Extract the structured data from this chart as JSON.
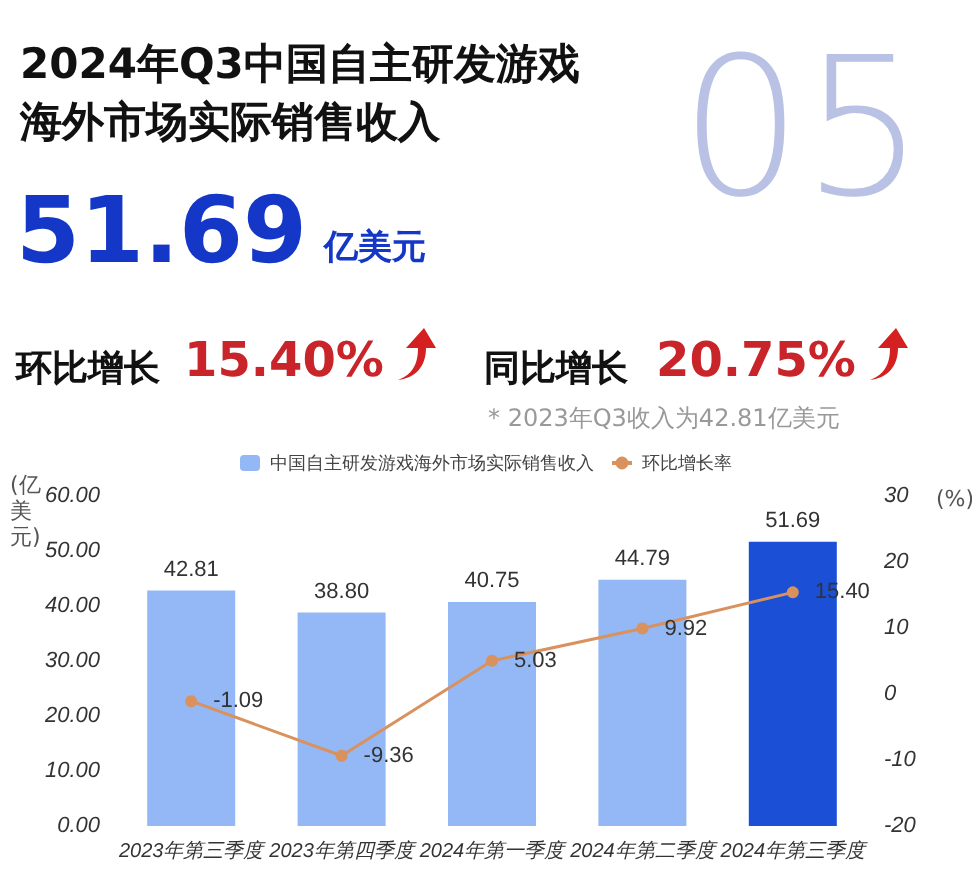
{
  "chart_data": {
    "type": "bar",
    "title": "2024年Q3中国自主研发游戏海外市场实际销售收入",
    "annotations": [
      "05",
      "51.69",
      "亿美元",
      "环比增长",
      "15.40%",
      "同比增长",
      "20.75%",
      "* 2023年Q3收入为42.81亿美元"
    ],
    "categories": [
      "2023年第三季度",
      "2023年第四季度",
      "2024年第一季度",
      "2024年第二季度",
      "2024年第三季度"
    ],
    "series": [
      {
        "name": "中国自主研发游戏海外市场实际销售收入",
        "colors": [
          "#93b8f5",
          "#93b8f5",
          "#93b8f5",
          "#93b8f5",
          "#1a4fd6"
        ],
        "values": [
          42.81,
          38.8,
          40.75,
          44.79,
          51.69
        ],
        "value_labels": [
          "42.81",
          "38.80",
          "40.75",
          "44.79",
          "51.69"
        ]
      },
      {
        "name": "环比增长率",
        "type": "line",
        "axis": "y2",
        "color": "#d9915e",
        "values": [
          -1.09,
          -9.36,
          5.03,
          9.92,
          15.4
        ],
        "value_labels": [
          "-1.09",
          "-9.36",
          "5.03",
          "9.92",
          "15.40"
        ]
      }
    ],
    "ylabel": "(亿美元)",
    "y2label": "(%)",
    "ylim": [
      0,
      60
    ],
    "yticks": [
      {
        "value": 0,
        "label": "0.00"
      },
      {
        "value": 10,
        "label": "10.00"
      },
      {
        "value": 20,
        "label": "20.00"
      },
      {
        "value": 30,
        "label": "30.00"
      },
      {
        "value": 40,
        "label": "40.00"
      },
      {
        "value": 50,
        "label": "50.00"
      },
      {
        "value": 60,
        "label": "60.00"
      }
    ],
    "y2lim": [
      -20,
      30
    ],
    "y2ticks": [
      -20,
      -10,
      0,
      10,
      20,
      30
    ],
    "grid": false,
    "legend": "top",
    "marker": "circle",
    "line_style": "solid"
  }
}
